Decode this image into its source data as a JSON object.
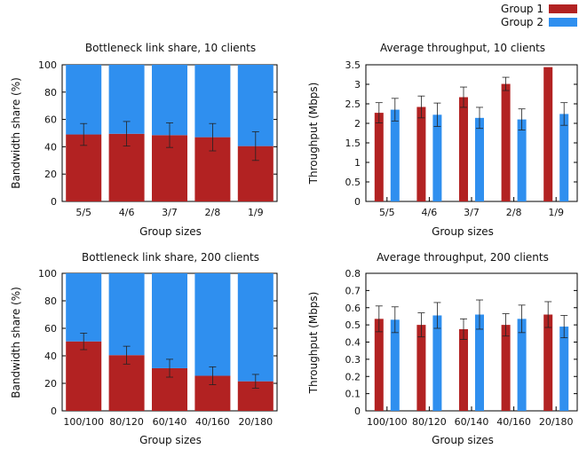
{
  "legend": {
    "entries": [
      {
        "name": "Group 1",
        "color": "#b22222"
      },
      {
        "name": "Group 2",
        "color": "#2f8fef"
      }
    ],
    "placement": "top-right"
  },
  "chart_data": [
    {
      "type": "bar",
      "stacked": true,
      "title": "Bottleneck link share, 10 clients",
      "xlabel": "Group sizes",
      "ylabel": "Bandwidth share (%)",
      "categories": [
        "5/5",
        "4/6",
        "3/7",
        "2/8",
        "1/9"
      ],
      "ylim": [
        0,
        100
      ],
      "yticks": [
        "0",
        "20",
        "40",
        "60",
        "80",
        "100"
      ],
      "series": [
        {
          "name": "Group 1",
          "values": [
            49,
            49.5,
            48.5,
            47,
            40.5
          ],
          "error": [
            8,
            9,
            9,
            10,
            10.5
          ]
        },
        {
          "name": "Group 2",
          "values": [
            51,
            50.5,
            51.5,
            53,
            59.5
          ]
        }
      ]
    },
    {
      "type": "bar",
      "title": "Average throughput, 10 clients",
      "xlabel": "Group sizes",
      "ylabel": "Throughput (Mbps)",
      "categories": [
        "5/5",
        "4/6",
        "3/7",
        "2/8",
        "1/9"
      ],
      "ylim": [
        0,
        3.5
      ],
      "yticks": [
        "0",
        "0.5",
        "1",
        "1.5",
        "2",
        "2.5",
        "3",
        "3.5"
      ],
      "series": [
        {
          "name": "Group 1",
          "values": [
            2.27,
            2.42,
            2.67,
            3.01,
            3.44
          ],
          "error": [
            0.26,
            0.28,
            0.26,
            0.17,
            0
          ]
        },
        {
          "name": "Group 2",
          "values": [
            2.35,
            2.22,
            2.14,
            2.1,
            2.24
          ],
          "error": [
            0.29,
            0.3,
            0.27,
            0.27,
            0.29
          ]
        }
      ]
    },
    {
      "type": "bar",
      "stacked": true,
      "title": "Bottleneck link share, 200 clients",
      "xlabel": "Group sizes",
      "ylabel": "Bandwidth share (%)",
      "categories": [
        "100/100",
        "80/120",
        "60/140",
        "40/160",
        "20/180"
      ],
      "ylim": [
        0,
        100
      ],
      "yticks": [
        "0",
        "20",
        "40",
        "60",
        "80",
        "100"
      ],
      "series": [
        {
          "name": "Group 1",
          "values": [
            50.5,
            40.5,
            31,
            25.5,
            21.5
          ],
          "error": [
            6,
            6.5,
            6.5,
            6.5,
            5
          ]
        },
        {
          "name": "Group 2",
          "values": [
            49.5,
            59.5,
            69,
            74.5,
            78.5
          ]
        }
      ]
    },
    {
      "type": "bar",
      "title": "Average throughput, 200 clients",
      "xlabel": "Group sizes",
      "ylabel": "Throughput (Mbps)",
      "categories": [
        "100/100",
        "80/120",
        "60/140",
        "40/160",
        "20/180"
      ],
      "ylim": [
        0,
        0.8
      ],
      "yticks": [
        "0",
        "0.1",
        "0.2",
        "0.3",
        "0.4",
        "0.5",
        "0.6",
        "0.7",
        "0.8"
      ],
      "series": [
        {
          "name": "Group 1",
          "values": [
            0.535,
            0.5,
            0.475,
            0.5,
            0.56
          ],
          "error": [
            0.075,
            0.07,
            0.06,
            0.065,
            0.075
          ]
        },
        {
          "name": "Group 2",
          "values": [
            0.53,
            0.555,
            0.56,
            0.535,
            0.49
          ],
          "error": [
            0.075,
            0.075,
            0.085,
            0.08,
            0.065
          ]
        }
      ]
    }
  ]
}
